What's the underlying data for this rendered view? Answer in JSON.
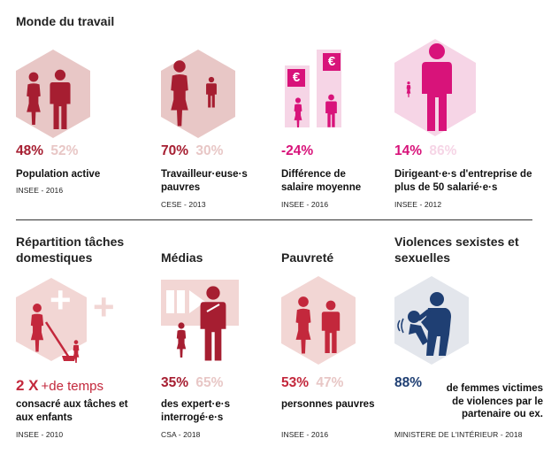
{
  "section_work": {
    "title": "Monde du travail"
  },
  "colors": {
    "dark_red": "#a61e31",
    "red": "#c3283c",
    "light_red": "#e8c7c6",
    "pink": "#d8137a",
    "light_pink": "#f6d5e6",
    "navy": "#1f3f73",
    "gray_text": "#111111"
  },
  "cards": {
    "active": {
      "stat_main": "48%",
      "stat_secondary": "52%",
      "label": "Population active",
      "source": "INSEE - 2016"
    },
    "poor_workers": {
      "stat_main": "70%",
      "stat_secondary": "30%",
      "label": "Travailleur·euse·s pauvres",
      "source": "CESE - 2013"
    },
    "salary": {
      "stat_main": "-24%",
      "label": "Différence de salaire moyenne",
      "source": "INSEE - 2016",
      "currency_symbol": "€"
    },
    "leaders": {
      "stat_main": "14%",
      "stat_secondary": "86%",
      "label": "Dirigeant·e·s d'entreprise de plus de 50 salarié·e·s",
      "source": "INSEE - 2012"
    },
    "chores": {
      "title": "Répartition tâches domestiques",
      "stat_main": "2 X",
      "stat_suffix": "+de temps",
      "label": "consacré aux tâches et aux enfants",
      "source": "INSEE - 2010",
      "plus_symbol": "+"
    },
    "media": {
      "title": "Médias",
      "stat_main": "35%",
      "stat_secondary": "65%",
      "label": "des expert·e·s interrogé·e·s",
      "source": "CSA - 2018"
    },
    "poverty": {
      "title": "Pauvreté",
      "stat_main": "53%",
      "stat_secondary": "47%",
      "label": "personnes pauvres",
      "source": "INSEE - 2016"
    },
    "violence": {
      "title": "Violences sexistes et sexuelles",
      "stat_main": "88%",
      "label": "de femmes victimes de violences par le partenaire ou ex.",
      "source": "MINISTERE DE L'INTÉRIEUR - 2018"
    }
  }
}
